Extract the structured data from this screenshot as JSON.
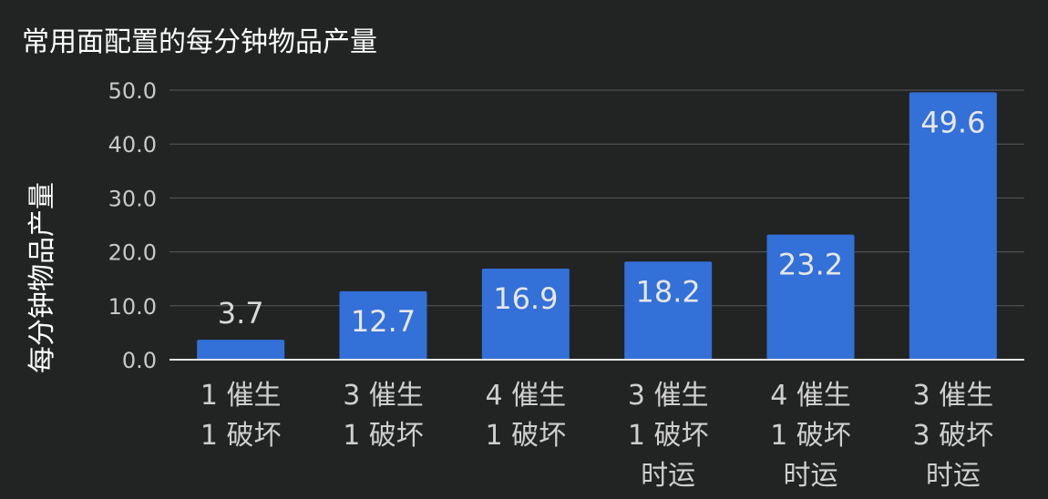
{
  "chart_data": {
    "type": "bar",
    "title": "常用面配置的每分钟物品产量",
    "xlabel": "",
    "ylabel": "每分钟物品产量",
    "categories": [
      [
        "1 催生",
        "1 破坏"
      ],
      [
        "3 催生",
        "1 破坏"
      ],
      [
        "4 催生",
        "1 破坏"
      ],
      [
        "3 催生",
        "1 破坏",
        "时运"
      ],
      [
        "4 催生",
        "1 破坏",
        "时运"
      ],
      [
        "3 催生",
        "3 破坏",
        "时运"
      ]
    ],
    "values": [
      3.7,
      12.7,
      16.9,
      18.2,
      23.2,
      49.6
    ],
    "data_labels": [
      "3.7",
      "12.7",
      "16.9",
      "18.2",
      "23.2",
      "49.6"
    ],
    "ylim": [
      0,
      50
    ],
    "yticks": [
      "0.0",
      "10.0",
      "20.0",
      "30.0",
      "40.0",
      "50.0"
    ],
    "grid": true,
    "legend": "none",
    "colors": {
      "bar": "#3370d7",
      "background": "#222323",
      "label_inside": "#e6e6e6",
      "label_outside": "#d9d9d9"
    }
  }
}
